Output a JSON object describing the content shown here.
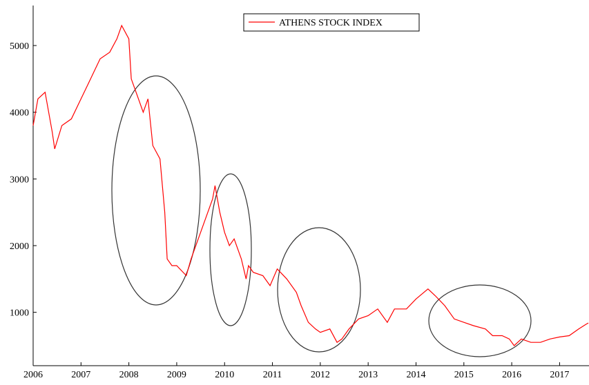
{
  "chart_data": {
    "type": "line",
    "x": [
      2006.0,
      2006.1,
      2006.25,
      2006.4,
      2006.45,
      2006.6,
      2006.8,
      2007.0,
      2007.2,
      2007.4,
      2007.6,
      2007.75,
      2007.85,
      2008.0,
      2008.05,
      2008.2,
      2008.3,
      2008.4,
      2008.5,
      2008.65,
      2008.75,
      2008.8,
      2008.9,
      2009.0,
      2009.2,
      2009.3,
      2009.45,
      2009.6,
      2009.75,
      2009.8,
      2009.9,
      2010.0,
      2010.1,
      2010.2,
      2010.35,
      2010.45,
      2010.5,
      2010.6,
      2010.8,
      2010.95,
      2011.1,
      2011.3,
      2011.5,
      2011.6,
      2011.75,
      2011.9,
      2012.0,
      2012.2,
      2012.35,
      2012.45,
      2012.6,
      2012.8,
      2013.0,
      2013.2,
      2013.4,
      2013.55,
      2013.8,
      2014.0,
      2014.25,
      2014.4,
      2014.6,
      2014.8,
      2015.0,
      2015.2,
      2015.45,
      2015.6,
      2015.8,
      2015.95,
      2016.05,
      2016.2,
      2016.4,
      2016.6,
      2016.8,
      2017.0,
      2017.2,
      2017.4,
      2017.55,
      2017.6
    ],
    "series": [
      {
        "name": "ATHENS STOCK INDEX",
        "color": "#ff0000",
        "values": [
          3800,
          4200,
          4300,
          3700,
          3450,
          3800,
          3900,
          4200,
          4500,
          4800,
          4900,
          5100,
          5300,
          5100,
          4500,
          4200,
          4000,
          4200,
          3500,
          3300,
          2500,
          1800,
          1700,
          1700,
          1550,
          1800,
          2100,
          2400,
          2700,
          2900,
          2500,
          2200,
          2000,
          2100,
          1800,
          1500,
          1700,
          1600,
          1550,
          1400,
          1650,
          1500,
          1300,
          1100,
          850,
          750,
          700,
          750,
          550,
          600,
          750,
          900,
          950,
          1050,
          850,
          1050,
          1050,
          1200,
          1350,
          1250,
          1100,
          900,
          850,
          800,
          750,
          650,
          650,
          600,
          500,
          600,
          550,
          550,
          600,
          630,
          650,
          750,
          820,
          840
        ]
      }
    ],
    "xlim": [
      2006,
      2017.6
    ],
    "ylim": [
      200,
      5600
    ],
    "xticks": [
      2006,
      2007,
      2008,
      2009,
      2010,
      2011,
      2012,
      2013,
      2014,
      2015,
      2016,
      2017
    ],
    "yticks": [
      1000,
      2000,
      3000,
      4000,
      5000
    ]
  }
}
